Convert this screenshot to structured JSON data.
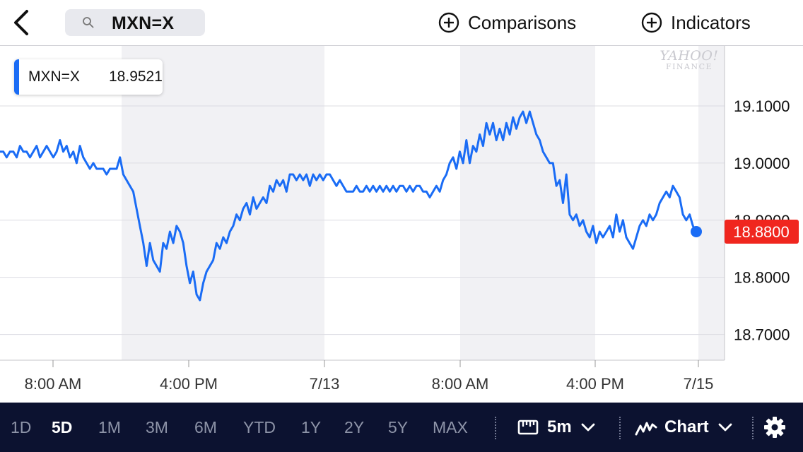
{
  "header": {
    "search_symbol": "MXN=X",
    "comparisons_label": "Comparisons",
    "indicators_label": "Indicators"
  },
  "tooltip": {
    "symbol": "MXN=X",
    "value": "18.9521"
  },
  "watermark": {
    "line1": "YAHOO!",
    "line2": "FINANCE"
  },
  "colors": {
    "line": "#1a6cf5",
    "current_price_bg": "#f0261e",
    "shading": "#f1f1f4",
    "bottom_bar": "#0c1230"
  },
  "chart_data": {
    "type": "line",
    "series": [
      {
        "values": [
          19.02,
          19.02,
          19.01,
          19.02,
          19.02,
          19.01,
          19.03,
          19.02,
          19.02,
          19.01,
          19.02,
          19.03,
          19.01,
          19.02,
          19.03,
          19.02,
          19.01,
          19.02,
          19.04,
          19.02,
          19.03,
          19.01,
          19.02,
          19.0,
          19.03,
          19.01,
          19.0,
          18.99,
          19.0,
          18.99,
          18.99,
          18.99,
          18.98,
          18.99,
          18.99,
          18.99,
          19.01,
          18.98,
          18.97,
          18.96,
          18.95,
          18.92,
          18.89,
          18.86,
          18.82,
          18.86,
          18.83,
          18.82,
          18.81,
          18.86,
          18.85,
          18.88,
          18.86,
          18.89,
          18.88,
          18.86,
          18.82,
          18.79,
          18.81,
          18.77,
          18.76,
          18.79,
          18.81,
          18.82,
          18.83,
          18.86,
          18.85,
          18.87,
          18.86,
          18.88,
          18.89,
          18.91,
          18.9,
          18.92,
          18.93,
          18.91,
          18.94,
          18.92,
          18.93,
          18.94,
          18.93,
          18.96,
          18.95,
          18.97,
          18.96,
          18.97,
          18.95,
          18.98,
          18.98,
          18.97,
          18.98,
          18.97,
          18.98,
          18.96,
          18.98,
          18.97,
          18.98,
          18.97,
          18.98,
          18.98,
          18.97,
          18.96,
          18.97,
          18.96,
          18.95,
          18.95,
          18.95,
          18.96,
          18.95,
          18.95,
          18.96,
          18.95,
          18.96,
          18.95,
          18.96,
          18.95,
          18.96,
          18.95,
          18.96,
          18.95,
          18.96,
          18.96,
          18.95,
          18.96,
          18.95,
          18.96,
          18.96,
          18.95,
          18.95,
          18.94,
          18.95,
          18.96,
          18.95,
          18.97,
          18.98,
          19.0,
          19.01,
          18.99,
          19.02,
          19.0,
          19.04,
          19.0,
          19.03,
          19.02,
          19.05,
          19.03,
          19.07,
          19.05,
          19.07,
          19.04,
          19.06,
          19.04,
          19.07,
          19.05,
          19.08,
          19.06,
          19.08,
          19.09,
          19.07,
          19.09,
          19.07,
          19.05,
          19.04,
          19.02,
          19.01,
          19.0,
          19.0,
          18.96,
          18.97,
          18.93,
          18.98,
          18.91,
          18.9,
          18.91,
          18.89,
          18.9,
          18.88,
          18.87,
          18.89,
          18.86,
          18.88,
          18.87,
          18.88,
          18.89,
          18.87,
          18.91,
          18.88,
          18.9,
          18.87,
          18.86,
          18.85,
          18.87,
          18.89,
          18.9,
          18.89,
          18.91,
          18.9,
          18.91,
          18.93,
          18.94,
          18.95,
          18.94,
          18.96,
          18.95,
          18.94,
          18.91,
          18.9,
          18.91,
          18.89,
          18.88
        ]
      }
    ],
    "current_value": "18.8800",
    "yticks": [
      "18.7000",
      "18.8000",
      "18.9000",
      "19.0000",
      "19.1000"
    ],
    "ylim": [
      18.655,
      19.205
    ],
    "xticks": [
      "8:00 AM",
      "4:00 PM",
      "7/13",
      "8:00 AM",
      "4:00 PM",
      "7/15"
    ],
    "shaded_sessions": 3,
    "grid": true
  },
  "footer": {
    "ranges": [
      "1D",
      "5D",
      "1M",
      "3M",
      "6M",
      "YTD",
      "1Y",
      "2Y",
      "5Y",
      "MAX"
    ],
    "active_range": "5D",
    "interval_label": "5m",
    "chart_type_label": "Chart"
  }
}
